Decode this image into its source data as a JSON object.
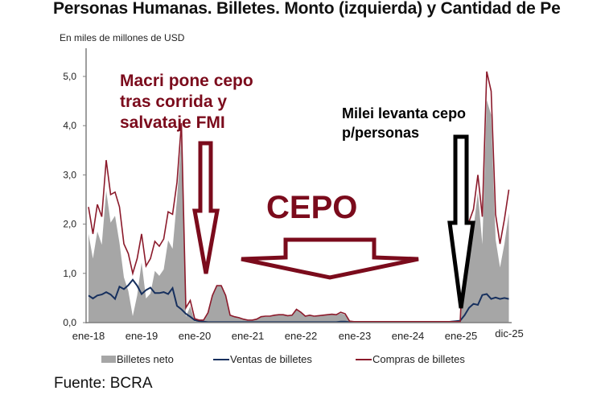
{
  "title": "Personas Humanas. Billetes. Monto (izquierda) y Cantidad de Pe",
  "units_label": "En miles de millones de USD",
  "source": "Fuente: BCRA",
  "annotations": {
    "macri": [
      "Macri pone cepo",
      "tras corrida y",
      "salvataje FMI"
    ],
    "milei": [
      "Milei levanta cepo",
      "p/personas"
    ],
    "cepo": "CEPO"
  },
  "colors": {
    "neto": "#a6a6a6",
    "ventas": "#17305e",
    "compras": "#8b1a2b",
    "annotation_red": "#7b0b1c",
    "annotation_black": "#000000"
  },
  "legend": [
    {
      "label": "Billetes neto",
      "type": "box"
    },
    {
      "label": "Ventas de billetes",
      "type": "line"
    },
    {
      "label": "Compras de billetes",
      "type": "line"
    }
  ],
  "chart_data": {
    "type": "area+line",
    "title": "Personas Humanas. Billetes. Monto (izquierda) y Cantidad de Pe",
    "ylabel": "En miles de millones de USD",
    "xlabel": "",
    "ylim": [
      0,
      5.0
    ],
    "yticks": [
      "0,0",
      "1,0",
      "2,0",
      "3,0",
      "4,0",
      "5,0"
    ],
    "xticks": [
      "ene-18",
      "ene-19",
      "ene-20",
      "ene-21",
      "ene-22",
      "ene-23",
      "ene-24",
      "ene-25",
      "dic-25"
    ],
    "grid": false,
    "legend_position": "bottom",
    "x_start": "ene-18",
    "x_end": "dic-25",
    "frequency": "monthly",
    "series": [
      {
        "name": "Compras de billetes",
        "type": "line",
        "values": [
          2.35,
          1.8,
          2.4,
          2.15,
          3.3,
          2.6,
          2.65,
          2.35,
          1.6,
          1.4,
          1.0,
          1.3,
          1.8,
          1.15,
          1.3,
          1.65,
          1.55,
          1.7,
          2.25,
          2.2,
          2.85,
          4.05,
          0.3,
          0.45,
          0.08,
          0.05,
          0.05,
          0.2,
          0.55,
          0.75,
          0.75,
          0.55,
          0.15,
          0.12,
          0.1,
          0.07,
          0.05,
          0.05,
          0.07,
          0.12,
          0.13,
          0.13,
          0.15,
          0.16,
          0.16,
          0.14,
          0.15,
          0.27,
          0.21,
          0.13,
          0.15,
          0.13,
          0.14,
          0.15,
          0.16,
          0.17,
          0.16,
          0.21,
          0.18,
          0.03,
          0.02,
          0.02,
          0.02,
          0.02,
          0.02,
          0.02,
          0.02,
          0.02,
          0.02,
          0.02,
          0.02,
          0.02,
          0.02,
          0.02,
          0.02,
          0.02,
          0.02,
          0.02,
          0.02,
          0.02,
          0.02,
          0.02,
          0.02,
          0.02,
          0.02,
          1.95,
          2.05,
          2.3,
          3.0,
          2.15,
          5.1,
          4.7,
          2.2,
          1.6,
          2.1,
          2.7
        ]
      },
      {
        "name": "Ventas de billetes",
        "type": "line",
        "values": [
          0.55,
          0.49,
          0.55,
          0.57,
          0.62,
          0.57,
          0.48,
          0.73,
          0.68,
          0.76,
          0.87,
          0.75,
          0.58,
          0.66,
          0.71,
          0.6,
          0.6,
          0.62,
          0.58,
          0.7,
          0.34,
          0.27,
          0.18,
          0.12,
          0.05,
          0.03,
          0.02,
          0.01,
          0.01,
          0.01,
          0.01,
          0.01,
          0.01,
          0.01,
          0.01,
          0.01,
          0.01,
          0.01,
          0.01,
          0.01,
          0.01,
          0.01,
          0.01,
          0.01,
          0.01,
          0.01,
          0.01,
          0.01,
          0.01,
          0.01,
          0.01,
          0.01,
          0.01,
          0.01,
          0.01,
          0.01,
          0.01,
          0.02,
          0.02,
          0.01,
          0.01,
          0.01,
          0.01,
          0.01,
          0.01,
          0.01,
          0.01,
          0.01,
          0.01,
          0.01,
          0.01,
          0.01,
          0.01,
          0.01,
          0.01,
          0.01,
          0.01,
          0.01,
          0.01,
          0.01,
          0.01,
          0.01,
          0.02,
          0.03,
          0.04,
          0.15,
          0.3,
          0.38,
          0.36,
          0.56,
          0.58,
          0.48,
          0.51,
          0.48,
          0.5,
          0.48
        ]
      },
      {
        "name": "Billetes neto",
        "type": "area",
        "values": [
          1.8,
          1.3,
          1.85,
          1.58,
          2.68,
          2.03,
          2.17,
          1.62,
          0.92,
          0.64,
          0.13,
          0.55,
          1.22,
          0.49,
          0.59,
          1.05,
          0.95,
          1.08,
          1.67,
          1.5,
          2.51,
          3.78,
          0.12,
          0.33,
          0.03,
          0.02,
          0.03,
          0.19,
          0.54,
          0.74,
          0.74,
          0.54,
          0.14,
          0.11,
          0.09,
          0.06,
          0.04,
          0.04,
          0.06,
          0.11,
          0.12,
          0.12,
          0.14,
          0.15,
          0.15,
          0.13,
          0.14,
          0.26,
          0.2,
          0.12,
          0.14,
          0.12,
          0.13,
          0.14,
          0.15,
          0.16,
          0.15,
          0.19,
          0.16,
          0.02,
          0.01,
          0.01,
          0.01,
          0.01,
          0.01,
          0.01,
          0.01,
          0.01,
          0.01,
          0.01,
          0.01,
          0.01,
          0.01,
          0.01,
          0.01,
          0.01,
          0.01,
          0.01,
          0.01,
          0.01,
          0.01,
          0.01,
          0.0,
          0.0,
          0.0,
          1.8,
          1.75,
          1.92,
          2.64,
          1.59,
          4.52,
          4.22,
          1.69,
          1.12,
          1.6,
          2.22
        ]
      }
    ],
    "annotations": [
      {
        "text": "Macri pone cepo tras corrida y salvataje FMI",
        "arrow_target": "may-20"
      },
      {
        "text": "CEPO",
        "arrow_span": [
          "ene-21",
          "ene-24"
        ]
      },
      {
        "text": "Milei levanta cepo p/personas",
        "arrow_target": "abr-25"
      }
    ]
  }
}
